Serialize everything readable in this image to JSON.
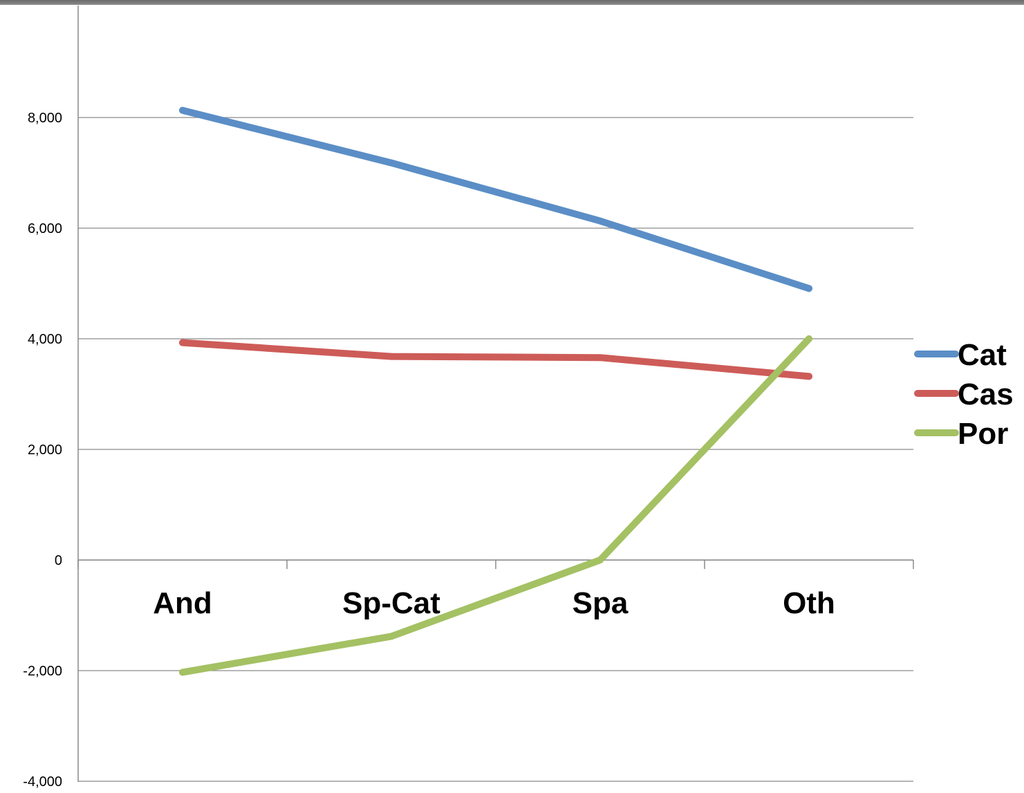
{
  "chart_data": {
    "type": "line",
    "title": "",
    "xlabel": "",
    "ylabel": "",
    "categories": [
      "And",
      "Sp-Cat",
      "Spa",
      "Oth"
    ],
    "ylim": [
      -4000,
      10000
    ],
    "yticks": [
      -4000,
      -2000,
      0,
      2000,
      4000,
      6000,
      8000
    ],
    "ytick_labels": [
      "-4,000",
      "-2,000",
      "0",
      "2,000",
      "4,000",
      "6,000",
      "8,000"
    ],
    "grid": true,
    "legend_position": "right",
    "series": [
      {
        "name": "Cat",
        "color": "#5b8ec6",
        "values": [
          8130,
          7180,
          6130,
          4910
        ]
      },
      {
        "name": "Cas",
        "color": "#cd5c58",
        "values": [
          3930,
          3680,
          3660,
          3320
        ]
      },
      {
        "name": "Por",
        "color": "#a4c163",
        "values": [
          -2030,
          -1380,
          0,
          4000
        ]
      }
    ]
  }
}
